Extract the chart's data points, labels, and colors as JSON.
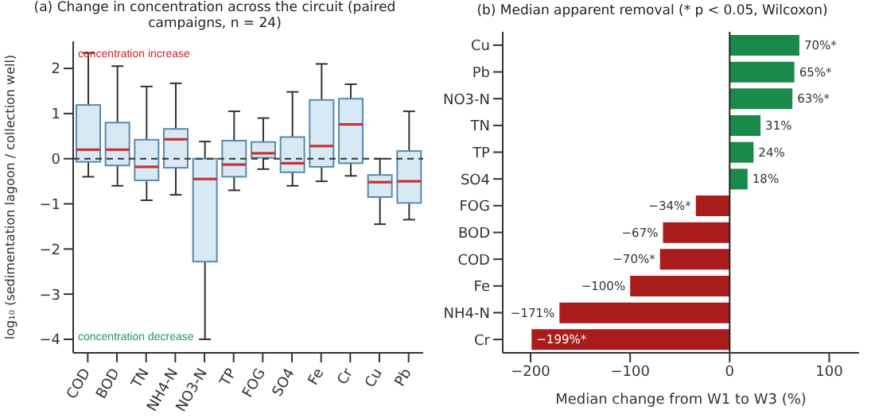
{
  "chart_data": [
    {
      "type": "box",
      "title": "(a) Change in concentration across the circuit (paired campaigns, n = 24)",
      "ylabel": "log₁₀ (sedimentation lagoon / collection well)",
      "categories": [
        "COD",
        "BOD",
        "TN",
        "NH4-N",
        "NO3-N",
        "TP",
        "FOG",
        "SO4",
        "Fe",
        "Cr",
        "Cu",
        "Pb"
      ],
      "color": "#d6e9f5",
      "boxes": [
        {
          "low": -0.4,
          "q1": -0.07,
          "median": 0.2,
          "q3": 1.19,
          "high": 2.34
        },
        {
          "low": -0.6,
          "q1": -0.15,
          "median": 0.2,
          "q3": 0.8,
          "high": 2.05
        },
        {
          "low": -0.92,
          "q1": -0.48,
          "median": -0.18,
          "q3": 0.42,
          "high": 1.6
        },
        {
          "low": -0.8,
          "q1": -0.2,
          "median": 0.43,
          "q3": 0.66,
          "high": 1.67
        },
        {
          "low": -4.0,
          "q1": -2.28,
          "median": -0.45,
          "q3": 0.0,
          "high": 0.38
        },
        {
          "low": -0.7,
          "q1": -0.4,
          "median": -0.13,
          "q3": 0.4,
          "high": 1.05
        },
        {
          "low": -0.23,
          "q1": 0.02,
          "median": 0.12,
          "q3": 0.37,
          "high": 0.9
        },
        {
          "low": -0.6,
          "q1": -0.3,
          "median": -0.1,
          "q3": 0.48,
          "high": 1.48
        },
        {
          "low": -0.5,
          "q1": -0.18,
          "median": 0.28,
          "q3": 1.3,
          "high": 2.1
        },
        {
          "low": -0.38,
          "q1": -0.1,
          "median": 0.76,
          "q3": 1.33,
          "high": 1.65
        },
        {
          "low": -1.45,
          "q1": -0.85,
          "median": -0.52,
          "q3": -0.36,
          "high": 0.0
        },
        {
          "low": -1.35,
          "q1": -0.98,
          "median": -0.5,
          "q3": 0.17,
          "high": 1.05
        }
      ],
      "ylim": [
        -4.3,
        2.6
      ],
      "yticks": [
        -4,
        -3,
        -2,
        -1,
        0,
        1,
        2
      ],
      "ref_lines": [
        {
          "axis": "y",
          "value": 0,
          "color": "#333333",
          "line_style": "dashed"
        }
      ],
      "annotations": [
        "concentration increase",
        "concentration decrease"
      ]
    },
    {
      "type": "bar",
      "orientation": "horizontal",
      "title": "(b) Median apparent removal (* p < 0.05, Wilcoxon)",
      "xlabel": "Median change from W1 to W3 (%)",
      "categories": [
        "Cu",
        "Pb",
        "NO3-N",
        "TN",
        "TP",
        "SO4",
        "FOG",
        "BOD",
        "COD",
        "Fe",
        "NH4-N",
        "Cr"
      ],
      "values": [
        70,
        65,
        63,
        31,
        24,
        18,
        -34,
        -67,
        -70,
        -100,
        -171,
        -199
      ],
      "colors": [
        "#198a4a",
        "#198a4a",
        "#198a4a",
        "#198a4a",
        "#198a4a",
        "#198a4a",
        "#a81c1c",
        "#a81c1c",
        "#a81c1c",
        "#a81c1c",
        "#a81c1c",
        "#a81c1c"
      ],
      "value_labels": [
        "70%*",
        "65%*",
        "63%*",
        "31%",
        "24%",
        "18%",
        "−34%*",
        "−67%",
        "−70%*",
        "−100%",
        "−171%",
        "−199%*"
      ],
      "xlim": [
        -228,
        130
      ],
      "xticks": [
        -200,
        -100,
        0,
        100
      ],
      "ref_lines": [
        {
          "axis": "x",
          "value": 0,
          "color": "#222222"
        }
      ]
    }
  ]
}
